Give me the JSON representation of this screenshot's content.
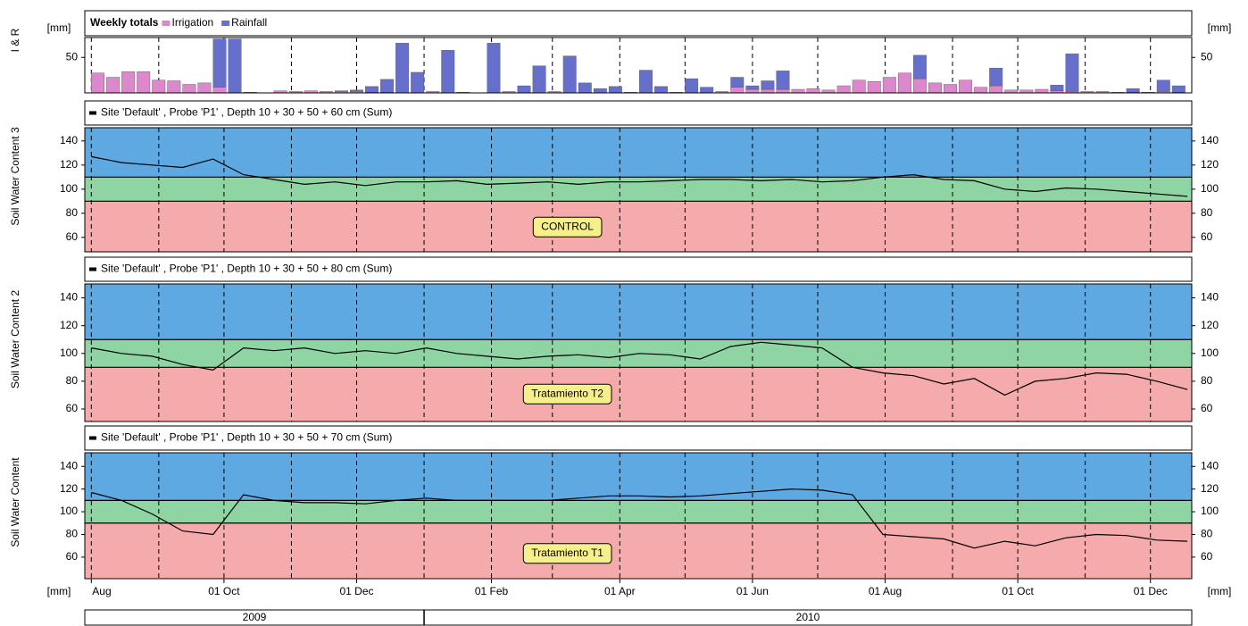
{
  "chart_data": [
    {
      "type": "bar",
      "stacked": true,
      "title": "Weekly totals",
      "ylabel": "I & R",
      "unit_label": "[mm]",
      "ylim": [
        0,
        78
      ],
      "yticks": [
        50
      ],
      "x": [
        "2009-08-01",
        "2009-08-08",
        "2009-08-15",
        "2009-08-22",
        "2009-08-29",
        "2009-09-05",
        "2009-09-12",
        "2009-09-19",
        "2009-09-26",
        "2009-10-03",
        "2009-10-10",
        "2009-10-17",
        "2009-10-24",
        "2009-10-31",
        "2009-11-07",
        "2009-11-14",
        "2009-11-21",
        "2009-11-28",
        "2009-12-05",
        "2009-12-12",
        "2009-12-19",
        "2009-12-26",
        "2010-01-02",
        "2010-01-09",
        "2010-01-16",
        "2010-01-23",
        "2010-01-30",
        "2010-02-06",
        "2010-02-13",
        "2010-02-20",
        "2010-02-27",
        "2010-03-06",
        "2010-03-13",
        "2010-03-20",
        "2010-03-27",
        "2010-04-03",
        "2010-04-10",
        "2010-04-17",
        "2010-04-24",
        "2010-05-01",
        "2010-05-08",
        "2010-05-15",
        "2010-05-22",
        "2010-05-29",
        "2010-06-05",
        "2010-06-12",
        "2010-06-19",
        "2010-06-26",
        "2010-07-03",
        "2010-07-10",
        "2010-07-17",
        "2010-07-24",
        "2010-07-31",
        "2010-08-07",
        "2010-08-14",
        "2010-08-21",
        "2010-08-28",
        "2010-09-04",
        "2010-09-11",
        "2010-09-18",
        "2010-09-25",
        "2010-10-02",
        "2010-10-09",
        "2010-10-16",
        "2010-10-23",
        "2010-10-30",
        "2010-11-06",
        "2010-11-13",
        "2010-11-20",
        "2010-11-27",
        "2010-12-04",
        "2010-12-11"
      ],
      "series": [
        {
          "name": "Irrigation",
          "color": "#dd88cc",
          "values": [
            28,
            22,
            30,
            30,
            18,
            17,
            12,
            14,
            8,
            0,
            1,
            0,
            3,
            2,
            3,
            2,
            2,
            2,
            1,
            1,
            0,
            0,
            2,
            0,
            1,
            0,
            0,
            2,
            0,
            0,
            2,
            0,
            0,
            0,
            0,
            1,
            0,
            0,
            1,
            0,
            0,
            2,
            8,
            5,
            5,
            5,
            5,
            6,
            4,
            10,
            18,
            16,
            22,
            28,
            20,
            14,
            12,
            18,
            8,
            10,
            4,
            4,
            5,
            3,
            2,
            2,
            2,
            1,
            1,
            1,
            2,
            1
          ]
        },
        {
          "name": "Rainfall",
          "color": "#6670cc",
          "values": [
            0,
            0,
            0,
            0,
            0,
            0,
            0,
            0,
            68,
            76,
            0,
            0,
            0,
            0,
            0,
            0,
            1,
            2,
            8,
            18,
            70,
            29,
            0,
            60,
            0,
            0,
            70,
            0,
            10,
            38,
            0,
            52,
            14,
            6,
            9,
            0,
            32,
            9,
            0,
            20,
            8,
            0,
            14,
            5,
            12,
            26,
            0,
            0,
            0,
            0,
            0,
            0,
            0,
            0,
            33,
            0,
            0,
            0,
            0,
            25,
            0,
            0,
            0,
            8,
            53,
            0,
            0,
            0,
            5,
            0,
            16,
            9
          ]
        }
      ]
    },
    {
      "type": "line",
      "title": "Site 'Default' , Probe 'P1' , Depth 10 + 30 + 50 + 60 cm (Sum)",
      "ylabel": "Soil Water Content 3",
      "annotation": "CONTROL",
      "ylim": [
        48,
        151
      ],
      "yticks": [
        60,
        80,
        100,
        120,
        140
      ],
      "thresholds": [
        90,
        110
      ],
      "band_colors": [
        "#f5aaab",
        "#8fd5a3",
        "#5fa9e2"
      ],
      "x": [
        "2009-08-01",
        "2009-08-15",
        "2009-08-29",
        "2009-09-12",
        "2009-09-26",
        "2009-10-10",
        "2009-10-24",
        "2009-11-07",
        "2009-11-21",
        "2009-12-05",
        "2009-12-19",
        "2010-01-02",
        "2010-01-16",
        "2010-01-30",
        "2010-02-13",
        "2010-02-27",
        "2010-03-13",
        "2010-03-27",
        "2010-04-10",
        "2010-04-24",
        "2010-05-08",
        "2010-05-22",
        "2010-06-05",
        "2010-06-19",
        "2010-07-03",
        "2010-07-17",
        "2010-07-31",
        "2010-08-14",
        "2010-08-28",
        "2010-09-11",
        "2010-09-25",
        "2010-10-09",
        "2010-10-23",
        "2010-11-06",
        "2010-11-20",
        "2010-12-04",
        "2010-12-18"
      ],
      "series": [
        {
          "color": "#000000",
          "values": [
            127,
            122,
            120,
            118,
            125,
            112,
            108,
            104,
            106,
            103,
            106,
            106,
            107,
            104,
            105,
            106,
            104,
            106,
            106,
            107,
            108,
            108,
            107,
            108,
            106,
            107,
            110,
            112,
            108,
            107,
            100,
            98,
            101,
            100,
            98,
            96,
            94
          ]
        }
      ]
    },
    {
      "type": "line",
      "title": "Site 'Default' , Probe 'P1' , Depth 10 + 30 + 50 + 80 cm (Sum)",
      "ylabel": "Soil Water Content 2",
      "annotation": "Tratamiento T2",
      "ylim": [
        51,
        150
      ],
      "yticks": [
        60,
        80,
        100,
        120,
        140
      ],
      "thresholds": [
        90,
        110
      ],
      "band_colors": [
        "#f5aaab",
        "#8fd5a3",
        "#5fa9e2"
      ],
      "x": [
        "2009-08-01",
        "2009-08-15",
        "2009-08-29",
        "2009-09-12",
        "2009-09-26",
        "2009-10-10",
        "2009-10-24",
        "2009-11-07",
        "2009-11-21",
        "2009-12-05",
        "2009-12-19",
        "2010-01-02",
        "2010-01-16",
        "2010-01-30",
        "2010-02-13",
        "2010-02-27",
        "2010-03-13",
        "2010-03-27",
        "2010-04-10",
        "2010-04-24",
        "2010-05-08",
        "2010-05-22",
        "2010-06-05",
        "2010-06-19",
        "2010-07-03",
        "2010-07-17",
        "2010-07-31",
        "2010-08-14",
        "2010-08-28",
        "2010-09-11",
        "2010-09-25",
        "2010-10-09",
        "2010-10-23",
        "2010-11-06",
        "2010-11-20",
        "2010-12-04",
        "2010-12-18"
      ],
      "series": [
        {
          "color": "#000000",
          "values": [
            104,
            100,
            98,
            92,
            88,
            104,
            102,
            104,
            100,
            102,
            100,
            104,
            100,
            98,
            96,
            98,
            99,
            97,
            100,
            99,
            96,
            105,
            108,
            106,
            104,
            90,
            86,
            84,
            78,
            82,
            70,
            80,
            82,
            86,
            85,
            80,
            74
          ]
        }
      ]
    },
    {
      "type": "line",
      "title": "Site 'Default' , Probe 'P1' , Depth 10 + 30 + 50 + 70 cm (Sum)",
      "ylabel": "Soil Water Content",
      "annotation": "Tratamiento T1",
      "ylim": [
        41,
        152
      ],
      "yticks": [
        60,
        80,
        100,
        120,
        140
      ],
      "thresholds": [
        90,
        110
      ],
      "band_colors": [
        "#f5aaab",
        "#8fd5a3",
        "#5fa9e2"
      ],
      "x": [
        "2009-08-01",
        "2009-08-15",
        "2009-08-29",
        "2009-09-12",
        "2009-09-26",
        "2009-10-10",
        "2009-10-24",
        "2009-11-07",
        "2009-11-21",
        "2009-12-05",
        "2009-12-19",
        "2010-01-02",
        "2010-01-16",
        "2010-01-30",
        "2010-02-13",
        "2010-02-27",
        "2010-03-13",
        "2010-03-27",
        "2010-04-10",
        "2010-04-24",
        "2010-05-08",
        "2010-05-22",
        "2010-06-05",
        "2010-06-19",
        "2010-07-03",
        "2010-07-17",
        "2010-07-31",
        "2010-08-14",
        "2010-08-28",
        "2010-09-11",
        "2010-09-25",
        "2010-10-09",
        "2010-10-23",
        "2010-11-06",
        "2010-11-20",
        "2010-12-04",
        "2010-12-18"
      ],
      "series": [
        {
          "color": "#000000",
          "values": [
            117,
            110,
            98,
            83,
            80,
            115,
            110,
            108,
            108,
            107,
            110,
            112,
            110,
            110,
            110,
            110,
            112,
            114,
            114,
            113,
            114,
            116,
            118,
            120,
            119,
            115,
            80,
            78,
            76,
            68,
            74,
            70,
            77,
            80,
            79,
            75,
            74
          ]
        }
      ]
    }
  ],
  "x_axis": {
    "xlim": [
      "2009-07-29",
      "2010-12-20"
    ],
    "unit_label": "[mm]",
    "xticks": [
      {
        "value": "2009-08-01",
        "label": "Aug"
      },
      {
        "value": "2009-10-01",
        "label": "01 Oct"
      },
      {
        "value": "2009-12-01",
        "label": "01 Dec"
      },
      {
        "value": "2010-02-01",
        "label": "01 Feb"
      },
      {
        "value": "2010-04-01",
        "label": "01 Apr"
      },
      {
        "value": "2010-06-01",
        "label": "01 Jun"
      },
      {
        "value": "2010-08-01",
        "label": "01 Aug"
      },
      {
        "value": "2010-10-01",
        "label": "01 Oct"
      },
      {
        "value": "2010-12-01",
        "label": "01 Dec"
      }
    ],
    "xgrid": [
      "2009-08-01",
      "2009-09-01",
      "2009-10-01",
      "2009-11-01",
      "2009-12-01",
      "2010-01-01",
      "2010-02-01",
      "2010-03-01",
      "2010-04-01",
      "2010-05-01",
      "2010-06-01",
      "2010-07-01",
      "2010-08-01",
      "2010-09-01",
      "2010-10-01",
      "2010-11-01",
      "2010-12-01"
    ],
    "year_labels": [
      "2009",
      "2010"
    ],
    "year_breaks": [
      "2010-01-01"
    ]
  }
}
